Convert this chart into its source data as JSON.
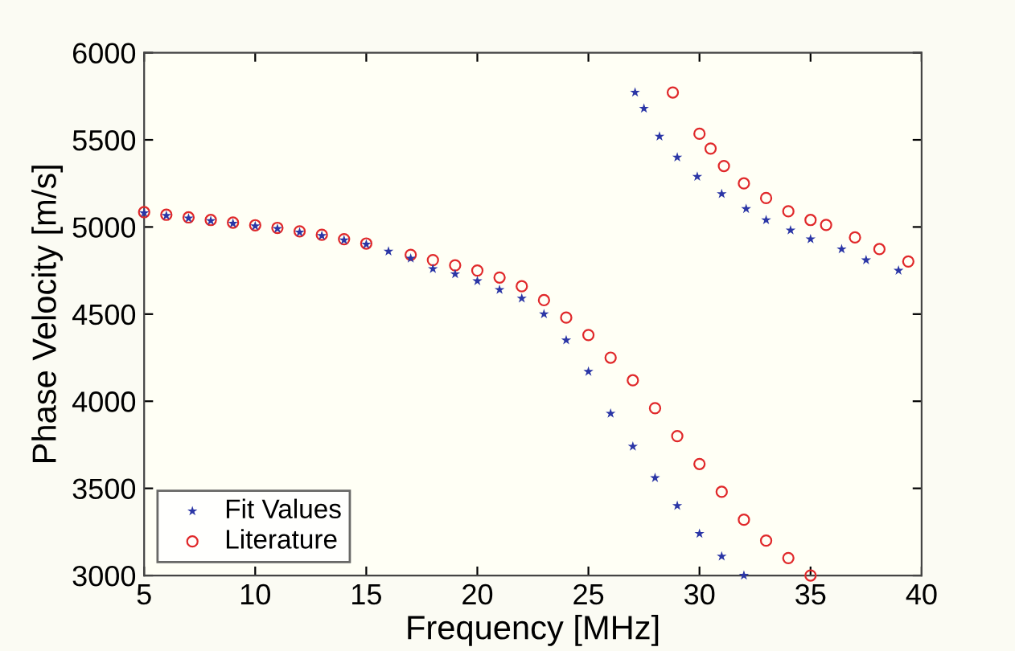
{
  "chart_data": {
    "type": "scatter",
    "xlabel": "Frequency [MHz]",
    "ylabel": "Phase Velocity [m/s]",
    "xlim": [
      5,
      40
    ],
    "xticks": [
      5,
      10,
      15,
      20,
      25,
      30,
      35,
      40
    ],
    "ylim": [
      3000,
      6000
    ],
    "yticks": [
      3000,
      3500,
      4000,
      4500,
      5000,
      5500,
      6000
    ],
    "grid": false,
    "legend": "bottom left",
    "series": [
      {
        "name": "Fit Values",
        "color": "#2b36a6",
        "marker": "star",
        "x": [
          5,
          6,
          7,
          8,
          9,
          10,
          11,
          12,
          13,
          14,
          15,
          16,
          17,
          18,
          19,
          20,
          21,
          22,
          23,
          24,
          25,
          26,
          27,
          28,
          29,
          30,
          31,
          32,
          27.1,
          27.5,
          28.2,
          29,
          29.9,
          31,
          32.1,
          33,
          34.1,
          35,
          36.4,
          37.5,
          38.96
        ],
        "values": [
          5080,
          5065,
          5050,
          5035,
          5020,
          5005,
          4990,
          4970,
          4950,
          4925,
          4900,
          4860,
          4820,
          4760,
          4730,
          4690,
          4640,
          4590,
          4500,
          4350,
          4170,
          3930,
          3740,
          3560,
          3400,
          3240,
          3110,
          3000,
          5772,
          5680,
          5520,
          5400,
          5289,
          5190,
          5104,
          5040,
          4981,
          4930,
          4873,
          4810,
          4750
        ]
      },
      {
        "name": "Literature",
        "color": "#e0282a",
        "marker": "circle",
        "x": [
          5,
          6,
          7,
          8,
          9,
          10,
          11,
          12,
          13,
          14,
          15,
          17,
          18,
          19,
          20,
          21,
          22,
          23,
          24,
          25,
          26,
          27,
          28,
          29,
          30,
          31,
          32,
          33,
          34,
          35,
          28.8,
          30,
          30.5,
          31.1,
          32,
          33,
          34,
          35,
          35.7,
          37,
          38.1,
          39.4
        ],
        "values": [
          5085,
          5070,
          5055,
          5040,
          5025,
          5010,
          4995,
          4975,
          4955,
          4930,
          4905,
          4840,
          4810,
          4780,
          4750,
          4710,
          4660,
          4580,
          4480,
          4380,
          4250,
          4120,
          3960,
          3800,
          3640,
          3480,
          3320,
          3200,
          3100,
          3000,
          5772,
          5535,
          5450,
          5350,
          5250,
          5166,
          5090,
          5040,
          5012,
          4940,
          4873,
          4802
        ]
      }
    ]
  }
}
